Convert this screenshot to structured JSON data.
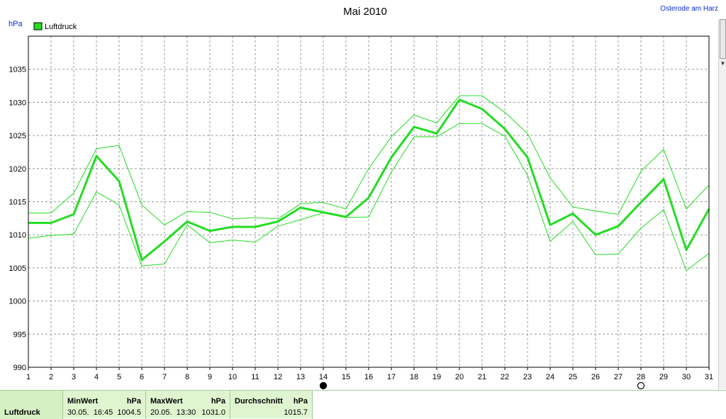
{
  "chart_data": {
    "type": "line",
    "title": "Mai 2010",
    "ylabel": "hPa",
    "location": "Osterode am Harz",
    "ylim": [
      990,
      1040
    ],
    "yticks": [
      990,
      995,
      1000,
      1005,
      1010,
      1015,
      1020,
      1025,
      1030,
      1035
    ],
    "x": [
      1,
      2,
      3,
      4,
      5,
      6,
      7,
      8,
      9,
      10,
      11,
      12,
      13,
      14,
      15,
      16,
      17,
      18,
      19,
      20,
      21,
      22,
      23,
      24,
      25,
      26,
      27,
      28,
      29,
      30,
      31
    ],
    "grid": true,
    "legend_position": "top-left",
    "legend": [
      {
        "label": "Luftdruck",
        "color": "#22dd22"
      }
    ],
    "series": [
      {
        "name": "Luftdruck",
        "role": "average",
        "values": [
          1011.8,
          1011.8,
          1013.1,
          1021.9,
          1018.1,
          1006.2,
          1009.0,
          1012.0,
          1010.6,
          1011.2,
          1011.2,
          1012.0,
          1014.1,
          1013.4,
          1012.7,
          1015.6,
          1021.7,
          1026.3,
          1025.3,
          1030.4,
          1029.0,
          1026.0,
          1021.7,
          1011.5,
          1013.2,
          1010.0,
          1011.3,
          1014.9,
          1018.4,
          1007.7,
          1013.9
        ]
      },
      {
        "role": "max",
        "values": [
          1013.3,
          1013.3,
          1016.3,
          1023.0,
          1023.5,
          1014.5,
          1011.5,
          1013.5,
          1013.4,
          1012.4,
          1012.6,
          1012.4,
          1014.7,
          1014.9,
          1013.9,
          1020.0,
          1024.8,
          1028.1,
          1026.9,
          1031.0,
          1031.0,
          1028.5,
          1025.3,
          1018.6,
          1014.2,
          1013.6,
          1013.1,
          1019.6,
          1022.9,
          1013.9,
          1017.5
        ]
      },
      {
        "role": "min",
        "values": [
          1009.5,
          1009.9,
          1010.1,
          1016.5,
          1014.5,
          1005.3,
          1005.6,
          1011.5,
          1008.8,
          1009.2,
          1008.9,
          1011.3,
          1012.3,
          1013.3,
          1012.6,
          1012.7,
          1019.5,
          1024.8,
          1024.8,
          1026.8,
          1026.8,
          1024.9,
          1019.0,
          1009.0,
          1012.0,
          1007.0,
          1007.1,
          1011.0,
          1013.8,
          1004.6,
          1007.2
        ]
      }
    ],
    "markers": [
      {
        "day": 14,
        "symbol": "filled-circle"
      },
      {
        "day": 28,
        "symbol": "open-circle"
      }
    ]
  },
  "stats": {
    "row_label": "Luftdruck",
    "min": {
      "header": "MinWert",
      "unit": "hPa",
      "datetime": "30.05.  16:45",
      "value": "1004.5"
    },
    "max": {
      "header": "MaxWert",
      "unit": "hPa",
      "datetime": "20.05.  13:30",
      "value": "1031.0"
    },
    "avg": {
      "header": "Durchschnitt",
      "unit": "hPa",
      "value": "1015.7"
    }
  },
  "colors": {
    "series_line": "#22dd22",
    "stats_bg": "#dff5d0",
    "header_text": "#0a2bd6"
  }
}
